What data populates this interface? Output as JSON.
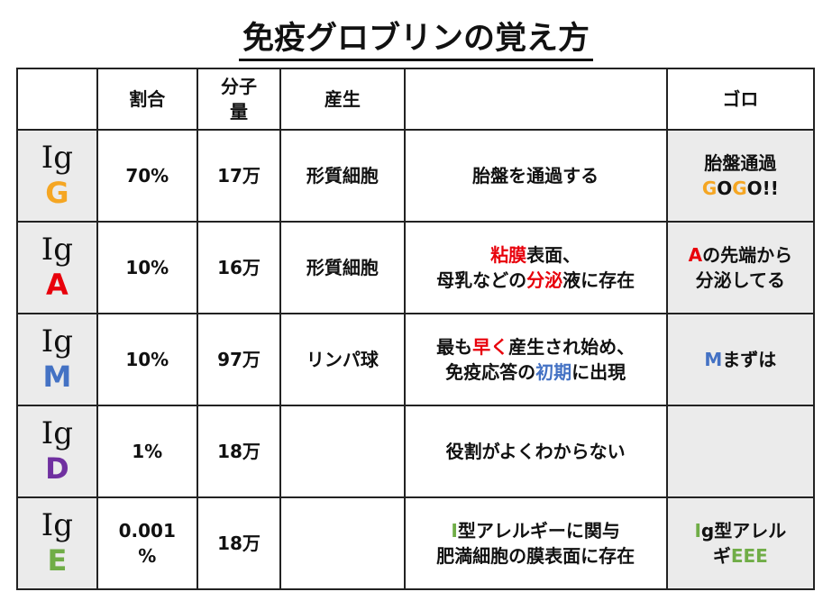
{
  "title": "免疫グロブリンの覚え方",
  "colors": {
    "orange": "#f5a623",
    "red": "#e8000b",
    "blue": "#4472c4",
    "purple": "#7030a0",
    "green": "#70ad47",
    "grey_cell": "#ebebeb"
  },
  "headers": [
    "",
    "割合",
    "分子\n量",
    "産生",
    "",
    "ゴロ"
  ],
  "rows": [
    {
      "prefix": "Ig",
      "letter": "G",
      "color": "#f5a623",
      "ratio": "70%",
      "weight": "17万",
      "producer": "形質細胞",
      "feature": [
        [
          {
            "t": "胎盤を通過する"
          }
        ]
      ],
      "mnemonic": [
        [
          {
            "t": "胎盤通過"
          }
        ],
        [
          {
            "t": "G",
            "c": "#f5a623"
          },
          {
            "t": "O"
          },
          {
            "t": "G",
            "c": "#f5a623"
          },
          {
            "t": "O!!"
          }
        ]
      ]
    },
    {
      "prefix": "Ig",
      "letter": "A",
      "color": "#e8000b",
      "ratio": "10%",
      "weight": "16万",
      "producer": "形質細胞",
      "feature": [
        [
          {
            "t": "粘膜",
            "c": "#e8000b"
          },
          {
            "t": "表面、"
          }
        ],
        [
          {
            "t": "母乳などの"
          },
          {
            "t": "分泌",
            "c": "#e8000b"
          },
          {
            "t": "液に存在"
          }
        ]
      ],
      "mnemonic": [
        [
          {
            "t": "A",
            "c": "#e8000b"
          },
          {
            "t": "の先端から"
          }
        ],
        [
          {
            "t": "分泌してる"
          }
        ]
      ]
    },
    {
      "prefix": "Ig",
      "letter": "M",
      "color": "#4472c4",
      "ratio": "10%",
      "weight": "97万",
      "producer": "リンパ球",
      "feature": [
        [
          {
            "t": "最も"
          },
          {
            "t": "早く",
            "c": "#e8000b"
          },
          {
            "t": "産生され始め、"
          }
        ],
        [
          {
            "t": "免疫応答の"
          },
          {
            "t": "初期",
            "c": "#4472c4"
          },
          {
            "t": "に出現"
          }
        ]
      ],
      "mnemonic": [
        [
          {
            "t": "M",
            "c": "#4472c4"
          },
          {
            "t": "まずは"
          }
        ]
      ]
    },
    {
      "prefix": "Ig",
      "letter": "D",
      "color": "#7030a0",
      "ratio": "1%",
      "weight": "18万",
      "producer": "",
      "feature": [
        [
          {
            "t": "役割がよくわからない"
          }
        ]
      ],
      "mnemonic": []
    },
    {
      "prefix": "Ig",
      "letter": "E",
      "color": "#70ad47",
      "ratio": "0.001\n%",
      "weight": "18万",
      "producer": "",
      "feature": [
        [
          {
            "t": "Ⅰ",
            "c": "#70ad47"
          },
          {
            "t": "型アレルギーに関与"
          }
        ],
        [
          {
            "t": "肥満細胞の膜表面に存在"
          }
        ]
      ],
      "mnemonic": [
        [
          {
            "t": "Ⅰ",
            "c": "#70ad47"
          },
          {
            "t": "g型アレル"
          }
        ],
        [
          {
            "t": "ギ"
          },
          {
            "t": "EEE",
            "c": "#70ad47"
          }
        ]
      ]
    }
  ]
}
